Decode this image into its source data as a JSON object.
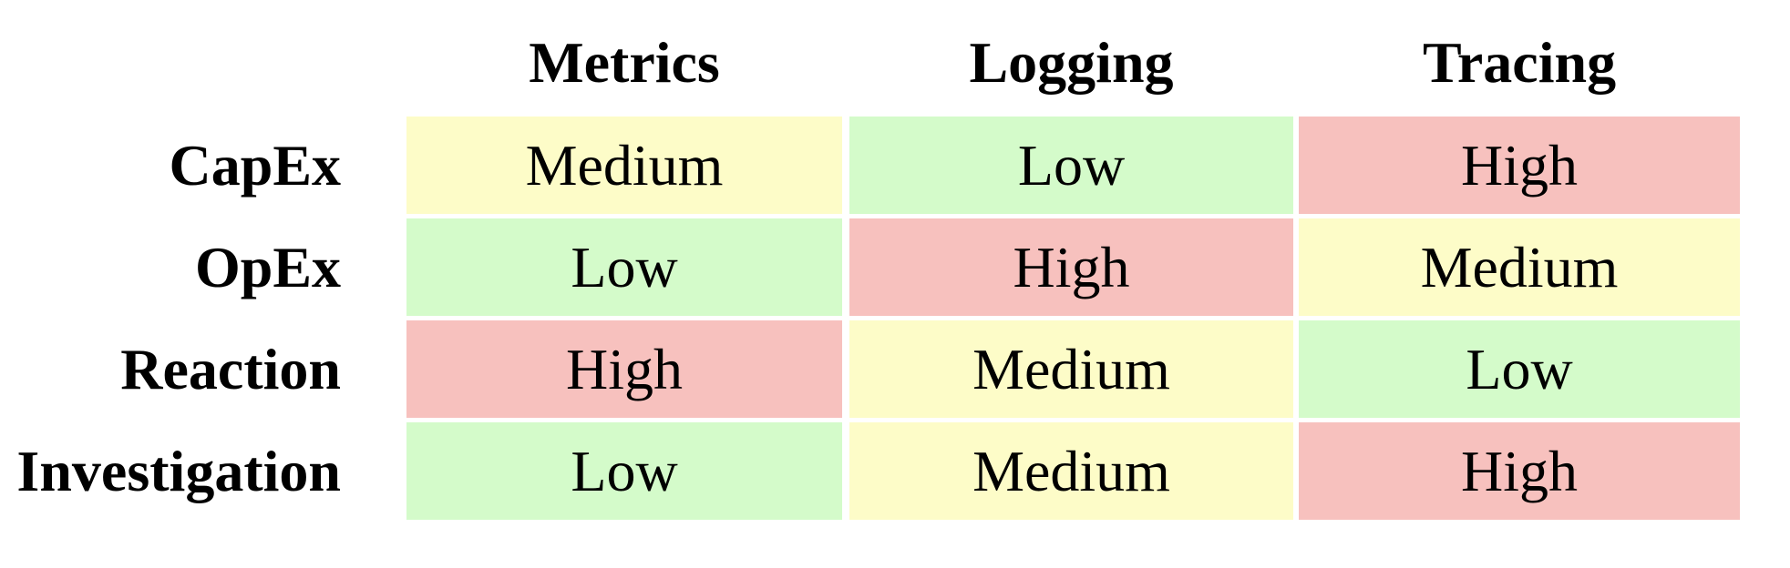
{
  "chart_data": {
    "type": "heatmap",
    "columns": [
      "Metrics",
      "Logging",
      "Tracing"
    ],
    "rows": [
      "CapEx",
      "OpEx",
      "Reaction",
      "Investigation"
    ],
    "values": [
      [
        "Medium",
        "Low",
        "High"
      ],
      [
        "Low",
        "High",
        "Medium"
      ],
      [
        "High",
        "Medium",
        "Low"
      ],
      [
        "Low",
        "Medium",
        "High"
      ]
    ],
    "level_colors": {
      "Low": "#d4fbca",
      "Medium": "#fdfcc8",
      "High": "#f7c1be"
    }
  }
}
